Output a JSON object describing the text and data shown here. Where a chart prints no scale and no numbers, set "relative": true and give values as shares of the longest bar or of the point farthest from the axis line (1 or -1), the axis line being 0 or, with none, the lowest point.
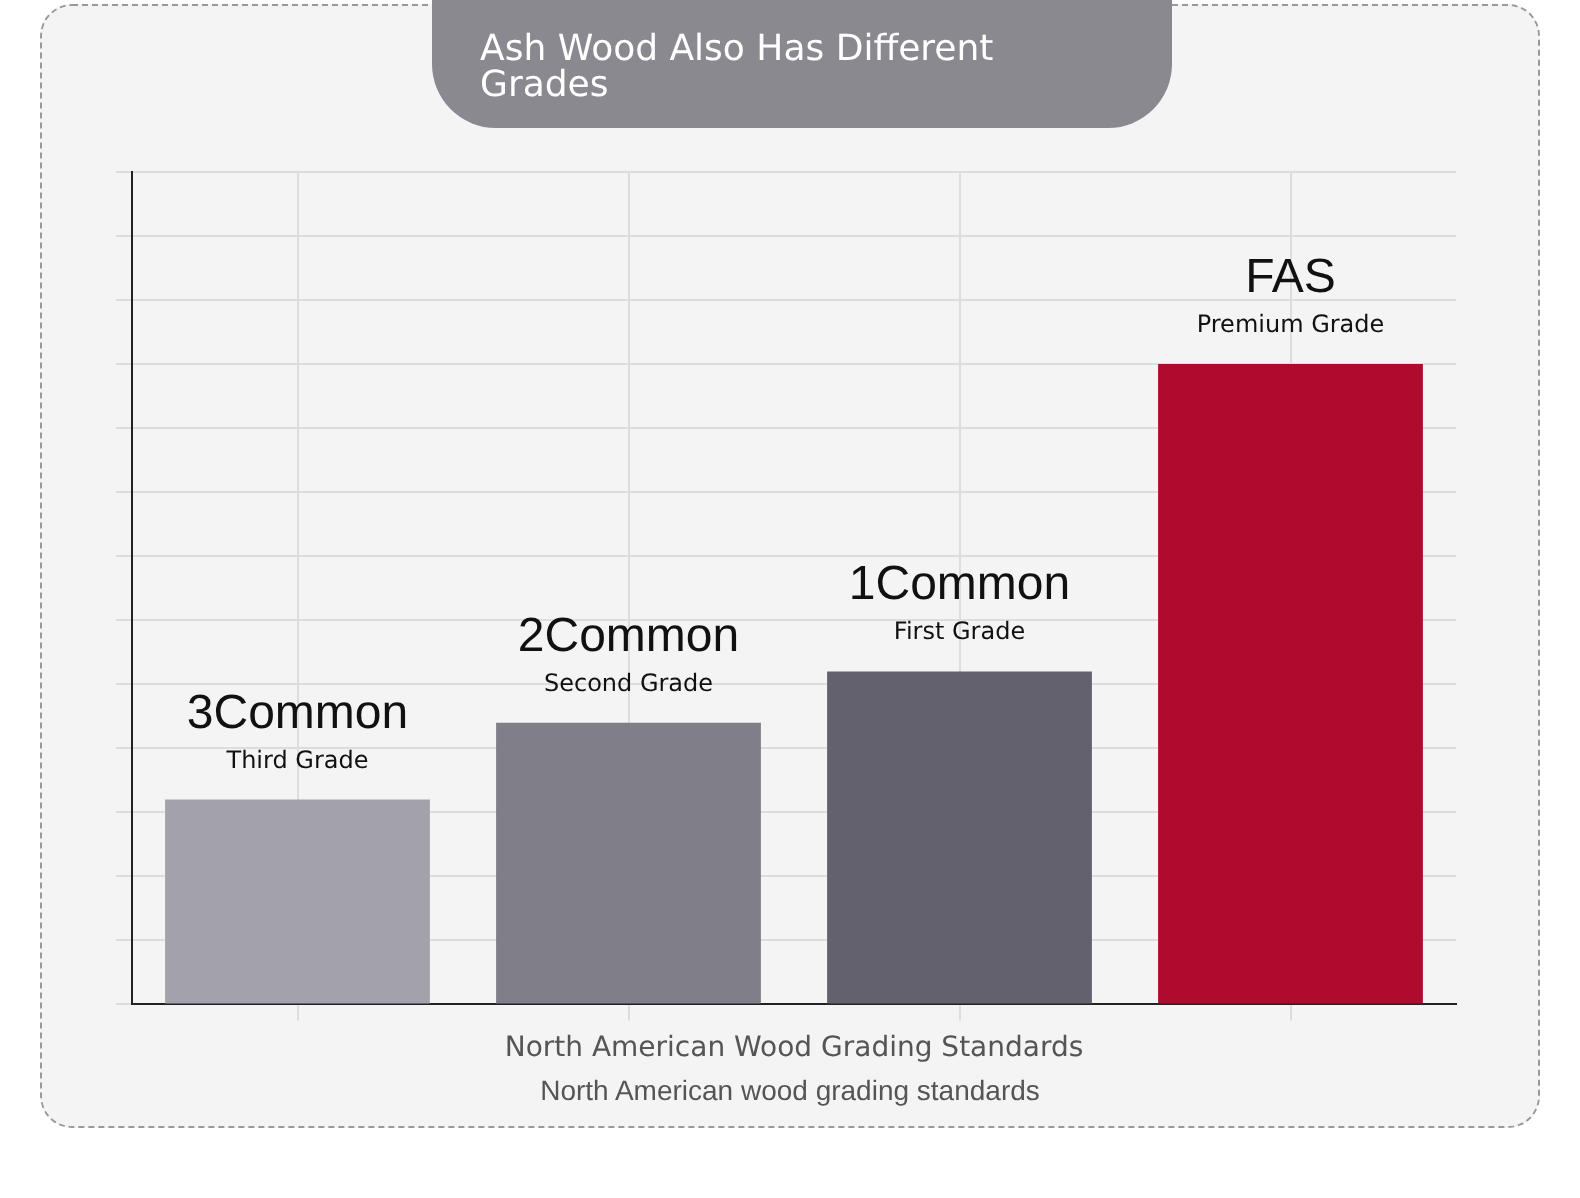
{
  "chart_data": {
    "type": "bar",
    "title": "Ash Wood Also Has Different Grades",
    "xlabel": "North American Wood Grading Standards",
    "categories": [
      "3Common",
      "2Common",
      "1Common",
      "FAS"
    ],
    "values": [
      0.32,
      0.44,
      0.52,
      1
    ],
    "colors": [
      "#a3a2aa",
      "#807f88",
      "#62616d",
      "#b00a2e"
    ],
    "relative": true,
    "grid": true,
    "legend": false,
    "annotations": [
      "Third Grade",
      "Second Grade",
      "First Grade",
      "Premium Grade",
      "North American wood grading standards"
    ]
  }
}
